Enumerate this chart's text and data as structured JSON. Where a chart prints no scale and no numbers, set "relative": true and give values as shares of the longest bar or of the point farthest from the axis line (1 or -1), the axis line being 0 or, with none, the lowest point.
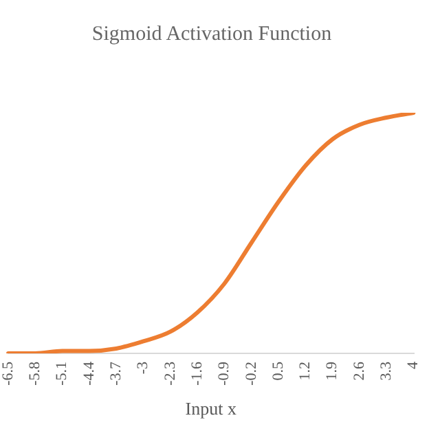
{
  "chart_data": {
    "type": "line",
    "title": "Sigmoid Activation Function",
    "xlabel": "Input x",
    "categories": [
      "-6.5",
      "-5.8",
      "-5.1",
      "-4.4",
      "-3.7",
      "-3",
      "-2.3",
      "-1.6",
      "-0.9",
      "-0.2",
      "0.5",
      "1.2",
      "1.9",
      "2.6",
      "3.3",
      "4"
    ],
    "relative": true,
    "series": [
      {
        "color": "#ed7d31",
        "values": [
          0,
          0,
          0.01,
          0.01,
          0.02,
          0.05,
          0.09,
          0.17,
          0.29,
          0.46,
          0.63,
          0.78,
          0.89,
          0.95,
          0.98,
          1
        ]
      }
    ],
    "grid": false,
    "legend": false,
    "marker": "none",
    "line_style": "solid"
  }
}
